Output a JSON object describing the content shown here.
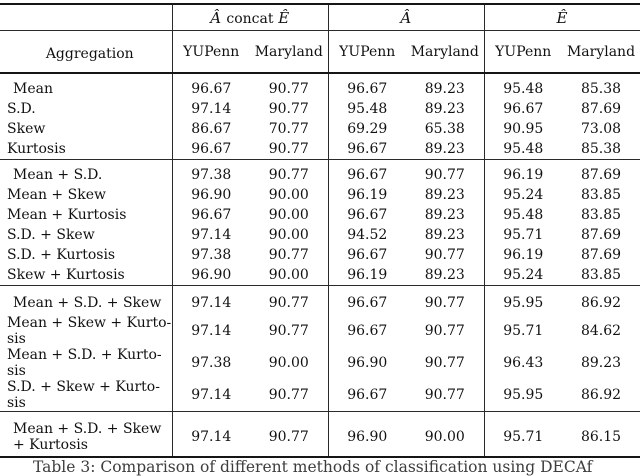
{
  "table": {
    "header": {
      "aggregation": "Aggregation",
      "groups": [
        {
          "a": "Â",
          "concat": "concat",
          "e": "Ê"
        },
        {
          "label": "Â"
        },
        {
          "label": "Ê"
        }
      ],
      "subcols": [
        "YUPenn",
        "Maryland",
        "YUPenn",
        "Maryland",
        "YUPenn",
        "Maryland"
      ]
    },
    "sections": [
      {
        "rows": [
          {
            "label_lines": [
              "Mean"
            ],
            "values": [
              "96.67",
              "90.77",
              "96.67",
              "89.23",
              "95.48",
              "85.38"
            ]
          },
          {
            "label_lines": [
              "S.D."
            ],
            "values": [
              "97.14",
              "90.77",
              "95.48",
              "89.23",
              "96.67",
              "87.69"
            ]
          },
          {
            "label_lines": [
              "Skew"
            ],
            "values": [
              "86.67",
              "70.77",
              "69.29",
              "65.38",
              "90.95",
              "73.08"
            ]
          },
          {
            "label_lines": [
              "Kurtosis"
            ],
            "values": [
              "96.67",
              "90.77",
              "96.67",
              "89.23",
              "95.48",
              "85.38"
            ]
          }
        ]
      },
      {
        "rows": [
          {
            "label_lines": [
              "Mean + S.D."
            ],
            "values": [
              "97.38",
              "90.77",
              "96.67",
              "90.77",
              "96.19",
              "87.69"
            ]
          },
          {
            "label_lines": [
              "Mean + Skew"
            ],
            "values": [
              "96.90",
              "90.00",
              "96.19",
              "89.23",
              "95.24",
              "83.85"
            ]
          },
          {
            "label_lines": [
              "Mean + Kurtosis"
            ],
            "values": [
              "96.67",
              "90.00",
              "96.67",
              "89.23",
              "95.48",
              "83.85"
            ]
          },
          {
            "label_lines": [
              "S.D. + Skew"
            ],
            "values": [
              "97.14",
              "90.00",
              "94.52",
              "89.23",
              "95.71",
              "87.69"
            ]
          },
          {
            "label_lines": [
              "S.D. + Kurtosis"
            ],
            "values": [
              "97.38",
              "90.77",
              "96.67",
              "90.77",
              "96.19",
              "87.69"
            ]
          },
          {
            "label_lines": [
              "Skew + Kurtosis"
            ],
            "values": [
              "96.90",
              "90.00",
              "96.19",
              "89.23",
              "95.24",
              "83.85"
            ]
          }
        ]
      },
      {
        "rows": [
          {
            "label_lines": [
              "Mean + S.D. + Skew"
            ],
            "values": [
              "97.14",
              "90.77",
              "96.67",
              "90.77",
              "95.95",
              "86.92"
            ]
          },
          {
            "label_lines": [
              "Mean + Skew + Kurto-",
              "sis"
            ],
            "values": [
              "97.14",
              "90.77",
              "96.67",
              "90.77",
              "95.71",
              "84.62"
            ]
          },
          {
            "label_lines": [
              "Mean + S.D. + Kurto-",
              "sis"
            ],
            "values": [
              "97.38",
              "90.00",
              "96.90",
              "90.77",
              "96.43",
              "89.23"
            ]
          },
          {
            "label_lines": [
              "S.D. + Skew + Kurto-",
              "sis"
            ],
            "values": [
              "97.14",
              "90.77",
              "96.67",
              "90.77",
              "95.95",
              "86.92"
            ]
          }
        ]
      },
      {
        "rows": [
          {
            "label_lines": [
              "Mean + S.D. + Skew",
              "+ Kurtosis"
            ],
            "values": [
              "97.14",
              "90.77",
              "96.90",
              "90.00",
              "95.71",
              "86.15"
            ]
          }
        ]
      }
    ]
  },
  "caption": {
    "text": "Table 3: Comparison of different methods of classification using DECAf"
  }
}
